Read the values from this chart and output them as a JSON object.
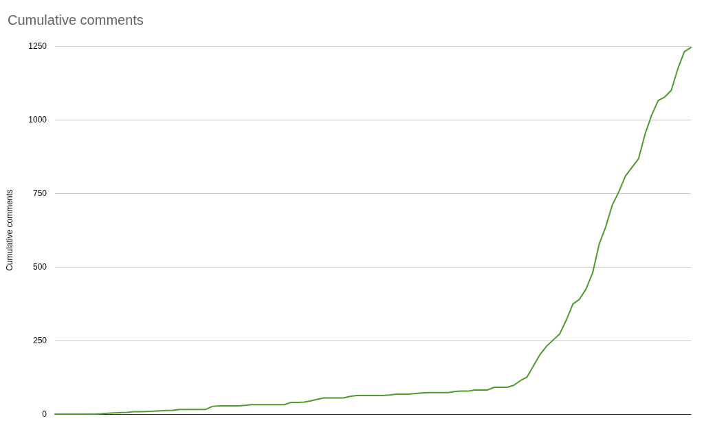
{
  "chart_data": {
    "type": "line",
    "title": "Cumulative comments",
    "ylabel": "Cumulative comments",
    "categories": [
      null,
      null,
      null,
      null,
      null,
      null,
      null,
      null,
      null,
      null,
      null,
      null,
      null,
      null,
      null,
      null,
      null,
      null,
      null,
      null,
      null,
      null,
      null,
      null,
      null,
      null,
      null,
      null,
      null,
      null,
      null,
      null,
      null,
      null,
      null,
      null,
      null,
      null,
      null,
      null,
      null,
      null,
      null,
      null,
      null,
      null,
      null,
      null,
      null,
      null,
      null,
      null,
      null,
      null,
      null,
      null,
      null,
      null,
      null,
      null,
      null,
      null,
      null,
      null,
      null,
      null,
      null,
      null,
      null,
      null,
      null,
      null,
      null,
      null,
      null,
      null,
      null,
      null,
      null,
      null,
      null,
      null,
      null,
      null,
      null,
      null,
      null,
      null,
      null,
      null,
      null,
      null,
      null,
      null,
      null,
      null,
      null,
      null
    ],
    "series": [
      {
        "color": "#4e9a2e",
        "values": [
          0,
          0,
          0,
          0,
          0,
          0,
          0,
          1,
          3,
          4,
          5,
          6,
          8,
          8,
          9,
          10,
          11,
          12,
          13,
          16,
          16,
          16,
          16,
          16,
          26,
          28,
          28,
          28,
          28,
          30,
          32,
          32,
          32,
          32,
          32,
          32,
          40,
          40,
          41,
          45,
          50,
          55,
          55,
          55,
          55,
          60,
          63,
          63,
          63,
          63,
          63,
          65,
          68,
          68,
          68,
          70,
          72,
          73,
          73,
          73,
          73,
          77,
          78,
          78,
          82,
          82,
          82,
          91,
          91,
          91,
          98,
          114,
          126,
          165,
          203,
          231,
          252,
          273,
          320,
          374,
          390,
          425,
          479,
          577,
          636,
          710,
          755,
          808,
          838,
          867,
          951,
          1015,
          1065,
          1077,
          1100,
          1173,
          1231,
          1245
        ]
      }
    ],
    "ylim": [
      0,
      1250
    ],
    "yticks": [
      0,
      250,
      500,
      750,
      1000,
      1250
    ],
    "grid": "y",
    "marker": "none",
    "line_style": "solid"
  }
}
